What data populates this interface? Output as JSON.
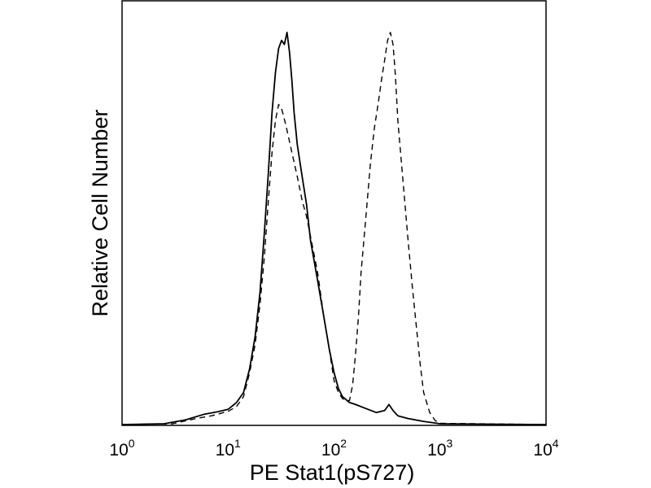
{
  "chart_data": {
    "type": "line",
    "title": "",
    "xlabel": "PE Stat1(pS727)",
    "ylabel": "Relative Cell Number",
    "x_scale": "log",
    "xlim": [
      1,
      10000
    ],
    "ylim": [
      0,
      100
    ],
    "grid": false,
    "legend": "none",
    "x_ticks": [
      {
        "base": "10",
        "exp": "0"
      },
      {
        "base": "10",
        "exp": "1"
      },
      {
        "base": "10",
        "exp": "2"
      },
      {
        "base": "10",
        "exp": "3"
      },
      {
        "base": "10",
        "exp": "4"
      }
    ],
    "series": [
      {
        "style": "solid",
        "color": "#000000",
        "points": [
          [
            1,
            0
          ],
          [
            2.5,
            0.2
          ],
          [
            4,
            1.2
          ],
          [
            6,
            2.6
          ],
          [
            8,
            3.2
          ],
          [
            10,
            3.8
          ],
          [
            12,
            5.5
          ],
          [
            14,
            8
          ],
          [
            16,
            14
          ],
          [
            18,
            22
          ],
          [
            20,
            33
          ],
          [
            22,
            48
          ],
          [
            24,
            63
          ],
          [
            26,
            78
          ],
          [
            28,
            88
          ],
          [
            30,
            94
          ],
          [
            32,
            96
          ],
          [
            34,
            95
          ],
          [
            36,
            98
          ],
          [
            38,
            93
          ],
          [
            40,
            86
          ],
          [
            42,
            78
          ],
          [
            45,
            70
          ],
          [
            50,
            62
          ],
          [
            55,
            55
          ],
          [
            60,
            46
          ],
          [
            70,
            36
          ],
          [
            80,
            27
          ],
          [
            90,
            19
          ],
          [
            100,
            13
          ],
          [
            110,
            9
          ],
          [
            120,
            7
          ],
          [
            140,
            5.5
          ],
          [
            160,
            5
          ],
          [
            200,
            4
          ],
          [
            250,
            3
          ],
          [
            300,
            3.5
          ],
          [
            330,
            5
          ],
          [
            360,
            3.5
          ],
          [
            400,
            2.2
          ],
          [
            500,
            1.5
          ],
          [
            700,
            0.8
          ],
          [
            1000,
            0.2
          ],
          [
            10000,
            0
          ]
        ]
      },
      {
        "style": "dashed",
        "color": "#000000",
        "points": [
          [
            1,
            0
          ],
          [
            3,
            0.2
          ],
          [
            5,
            1.5
          ],
          [
            7,
            2.2
          ],
          [
            10,
            3.3
          ],
          [
            12,
            4.5
          ],
          [
            14,
            7
          ],
          [
            16,
            13
          ],
          [
            18,
            20
          ],
          [
            20,
            30
          ],
          [
            22,
            42
          ],
          [
            24,
            56
          ],
          [
            26,
            68
          ],
          [
            28,
            76
          ],
          [
            30,
            80
          ],
          [
            32,
            79
          ],
          [
            35,
            75
          ],
          [
            40,
            68
          ],
          [
            45,
            62
          ],
          [
            50,
            56
          ],
          [
            55,
            52
          ],
          [
            60,
            47
          ],
          [
            70,
            38
          ],
          [
            80,
            27
          ],
          [
            90,
            19
          ],
          [
            100,
            11
          ],
          [
            110,
            8
          ],
          [
            120,
            6.5
          ],
          [
            130,
            6
          ],
          [
            140,
            6
          ],
          [
            150,
            10
          ],
          [
            160,
            18
          ],
          [
            170,
            27
          ],
          [
            180,
            38
          ],
          [
            200,
            52
          ],
          [
            220,
            65
          ],
          [
            240,
            74
          ],
          [
            260,
            80
          ],
          [
            280,
            86
          ],
          [
            300,
            91
          ],
          [
            320,
            96
          ],
          [
            340,
            98
          ],
          [
            360,
            95
          ],
          [
            380,
            87
          ],
          [
            400,
            76
          ],
          [
            450,
            60
          ],
          [
            500,
            46
          ],
          [
            550,
            34
          ],
          [
            600,
            24
          ],
          [
            650,
            15
          ],
          [
            700,
            8
          ],
          [
            800,
            3
          ],
          [
            900,
            1
          ],
          [
            1000,
            0.3
          ],
          [
            10000,
            0
          ]
        ]
      }
    ]
  }
}
